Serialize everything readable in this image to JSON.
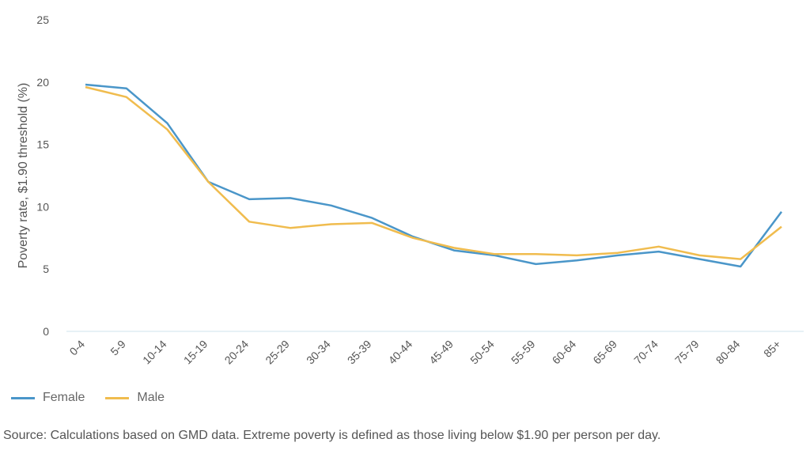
{
  "chart_data": {
    "type": "line",
    "title": "",
    "xlabel": "",
    "ylabel": "Poverty rate, $1.90 threshold (%)",
    "ylim": [
      0,
      25
    ],
    "yticks": [
      0,
      5,
      10,
      15,
      20,
      25
    ],
    "grid": false,
    "legend_position": "bottom-left",
    "categories": [
      "0-4",
      "5-9",
      "10-14",
      "15-19",
      "20-24",
      "25-29",
      "30-34",
      "35-39",
      "40-44",
      "45-49",
      "50-54",
      "55-59",
      "60-64",
      "65-69",
      "70-74",
      "75-79",
      "80-84",
      "85+"
    ],
    "series": [
      {
        "name": "Female",
        "color": "#4A96C9",
        "values": [
          19.8,
          19.5,
          16.7,
          12.0,
          10.6,
          10.7,
          10.1,
          9.1,
          7.6,
          6.5,
          6.1,
          5.4,
          5.7,
          6.1,
          6.4,
          5.8,
          5.2,
          9.6
        ]
      },
      {
        "name": "Male",
        "color": "#F0BC4E",
        "values": [
          19.6,
          18.8,
          16.2,
          12.0,
          8.8,
          8.3,
          8.6,
          8.7,
          7.5,
          6.7,
          6.2,
          6.2,
          6.1,
          6.3,
          6.8,
          6.1,
          5.8,
          8.4
        ]
      }
    ]
  },
  "source_text": "Source: Calculations based on GMD data. Extreme poverty is defined as those living below $1.90 per person per day."
}
